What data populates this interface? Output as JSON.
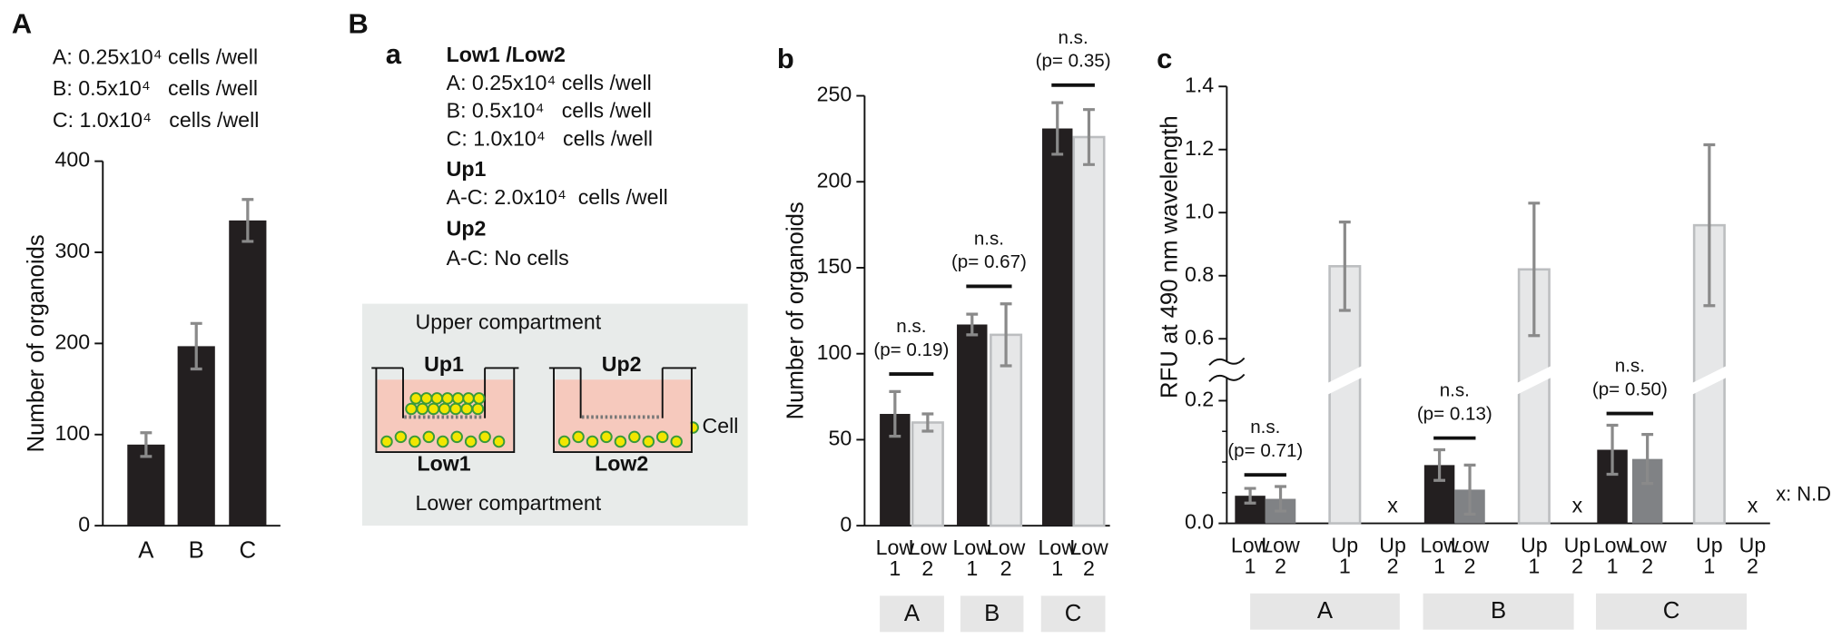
{
  "figure": {
    "panel_labels": [
      "A",
      "B"
    ]
  },
  "setup": {
    "panel": "a",
    "header": "Low1 /Low2",
    "low_densities": [
      "A: 0.25x10⁴ cells /well",
      "B: 0.5x10⁴   cells /well",
      "C: 1.0x10⁴   cells /well"
    ],
    "up1": "Up1",
    "up1_density": "A-C: 2.0x10⁴  cells /well",
    "up2": "Up2",
    "up2_density": "A-C: No cells",
    "diagram": {
      "upper_label": "Upper compartment",
      "lower_label": "Lower compartment",
      "upper_wells": [
        "Up1",
        "Up2"
      ],
      "lower_wells": [
        "Low1",
        "Low2"
      ],
      "cell_label": "Cell"
    }
  },
  "chart_data": [
    {
      "type": "bar",
      "panel": "A",
      "notes": [
        "A: 0.25x10⁴ cells /well",
        "B: 0.5x10⁴   cells /well",
        "C: 1.0x10⁴   cells /well"
      ],
      "ylabel": "Number of organoids",
      "categories": [
        "A",
        "B",
        "C"
      ],
      "values": [
        89,
        197,
        335
      ],
      "errors": [
        13,
        25,
        23
      ],
      "color": "#231f20",
      "error_color": "#8a8a8a",
      "ylim": [
        0,
        400
      ],
      "yticks": [
        0,
        100,
        200,
        300,
        400
      ]
    },
    {
      "type": "bar",
      "panel": "b",
      "ylabel": "Number of organoids",
      "categories": [
        "A",
        "B",
        "C"
      ],
      "series": [
        {
          "name": "Low 1",
          "color": "#231f20",
          "values": [
            65,
            117,
            231
          ],
          "errors": [
            13,
            6,
            15
          ]
        },
        {
          "name": "Low 2",
          "color": "#e6e7e8",
          "edge": "#bcbec0",
          "values": [
            60,
            111,
            226
          ],
          "errors": [
            5,
            18,
            16
          ]
        }
      ],
      "error_color": "#8a8a8a",
      "ylim": [
        0,
        250
      ],
      "yticks": [
        0,
        50,
        100,
        150,
        200,
        250
      ],
      "annotations": [
        {
          "label": "n.s.",
          "p": "(p= 0.19)"
        },
        {
          "label": "n.s.",
          "p": "(p= 0.67)"
        },
        {
          "label": "n.s.",
          "p": "(p= 0.35)"
        }
      ]
    },
    {
      "type": "bar",
      "panel": "c",
      "ylabel": "RFU at 490 nm wavelength",
      "categories": [
        "A",
        "B",
        "C"
      ],
      "series": [
        {
          "name": "Low 1",
          "color": "#231f20",
          "values": [
            0.045,
            0.095,
            0.12
          ],
          "errors": [
            0.012,
            0.025,
            0.04
          ]
        },
        {
          "name": "Low 2",
          "color": "#808285",
          "values": [
            0.04,
            0.055,
            0.105
          ],
          "errors": [
            0.02,
            0.04,
            0.04
          ]
        },
        {
          "name": "Up 1",
          "color": "#e6e7e8",
          "edge": "#bcbec0",
          "values": [
            0.83,
            0.82,
            0.96
          ],
          "errors": [
            0.14,
            0.21,
            0.255
          ]
        },
        {
          "name": "Up 2",
          "color": "#e6e7e8",
          "values": [
            null,
            null,
            null
          ]
        }
      ],
      "error_color": "#8a8a8a",
      "ylim": [
        0,
        1.4
      ],
      "ybreak": [
        0.2,
        0.6
      ],
      "yticks": [
        {
          "value": 0,
          "label": "0.0"
        },
        {
          "value": 0.2,
          "label": "0.2"
        },
        {
          "value": 0.6,
          "label": "0.6"
        },
        {
          "value": 0.8,
          "label": "0.8"
        },
        {
          "value": 1,
          "label": "1.0"
        },
        {
          "value": 1.2,
          "label": "1.2"
        },
        {
          "value": 1.4,
          "label": "1.4"
        }
      ],
      "minor_yticks": [
        0.05,
        0.1,
        0.15
      ],
      "annotations": [
        {
          "label": "n.s.",
          "p": "(p= 0.71)"
        },
        {
          "label": "n.s.",
          "p": "(p= 0.13)"
        },
        {
          "label": "n.s.",
          "p": "(p= 0.50)"
        }
      ],
      "missing_marker": "x",
      "missing_note": "x: N.D."
    }
  ]
}
